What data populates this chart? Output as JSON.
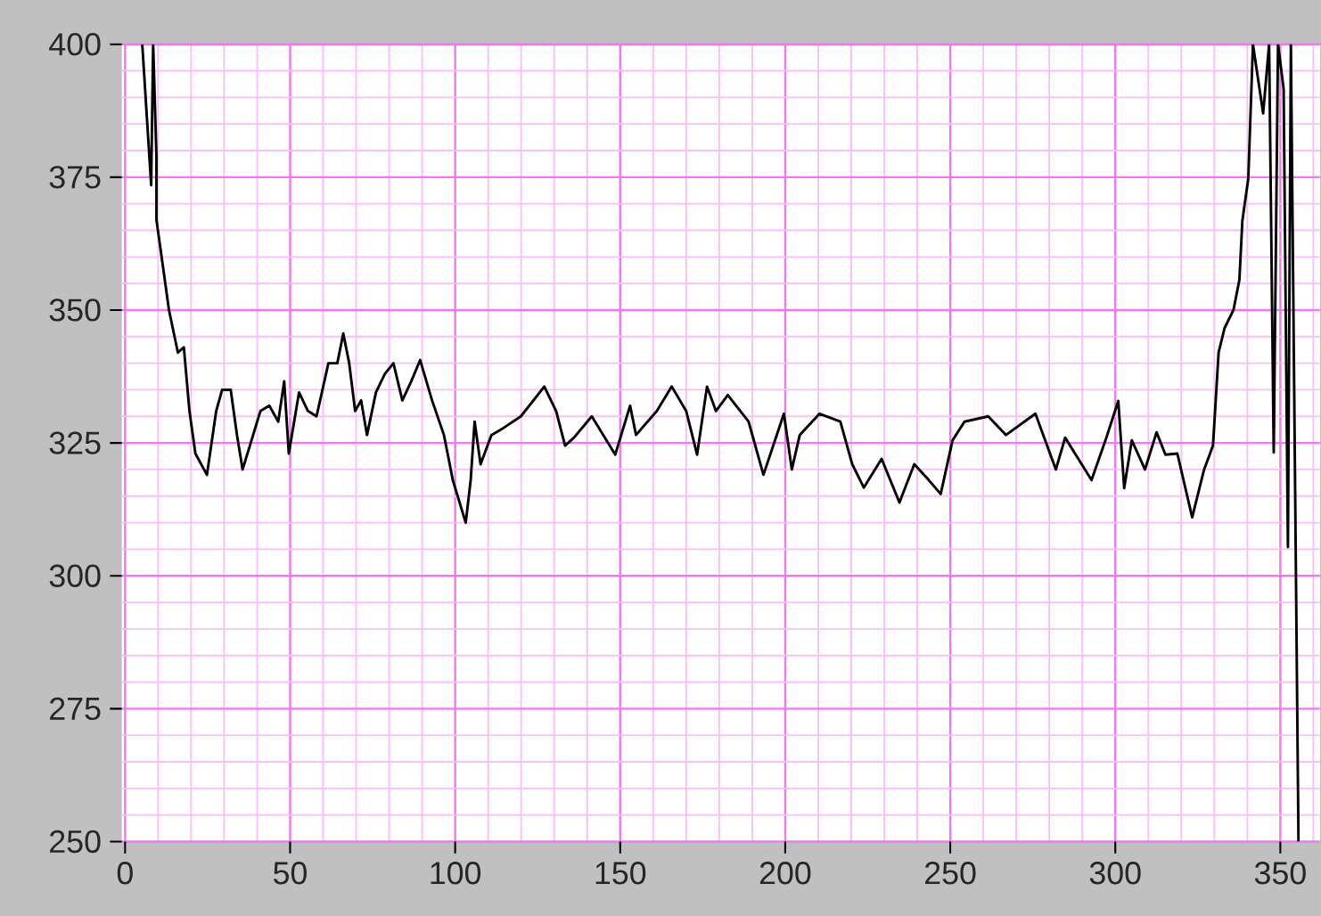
{
  "chart_data": {
    "type": "line",
    "x": [
      5.2,
      7.9,
      8.5,
      9.5,
      9.5,
      13.3,
      16,
      17.8,
      19.5,
      21.3,
      24.8,
      27.6,
      29.4,
      32,
      33.9,
      35.6,
      38.3,
      41,
      43.7,
      46.4,
      48.2,
      49.6,
      52.7,
      55.4,
      58,
      61.6,
      64.3,
      66.1,
      67.9,
      69.7,
      71.5,
      73.3,
      76,
      78.7,
      81.3,
      84,
      86.7,
      89.4,
      93,
      96.6,
      99.3,
      103.2,
      104.7,
      105.9,
      107.7,
      111,
      114.6,
      119.9,
      127,
      130.6,
      133.3,
      136,
      141.4,
      148.5,
      153,
      154.8,
      161.1,
      165.6,
      170,
      173.3,
      176.3,
      179,
      182.6,
      188.9,
      193.4,
      199.6,
      202,
      204.4,
      210.4,
      216.7,
      220.3,
      223.8,
      229.2,
      234.6,
      239.1,
      243.5,
      247.1,
      250.7,
      254.3,
      261.5,
      266.9,
      275.8,
      282,
      284.8,
      292.8,
      297.3,
      300.9,
      302.7,
      305,
      309,
      312.5,
      315.2,
      318.8,
      323.3,
      326.9,
      329.6,
      331.3,
      333.1,
      335.8,
      337.6,
      338.5,
      340.3,
      341.7,
      344.8,
      346.6,
      348,
      349.3,
      351,
      352.3,
      353.2,
      355.5
    ],
    "values": [
      400,
      373.5,
      400,
      379,
      367,
      350,
      342,
      343,
      331,
      323,
      319,
      331,
      335,
      335,
      326.5,
      320,
      325.5,
      331,
      332,
      329,
      336.6,
      323,
      334.5,
      331,
      330,
      340,
      340,
      345.6,
      340,
      331,
      333,
      326.5,
      334.5,
      338,
      340,
      333,
      336.6,
      340.6,
      333,
      326.5,
      318,
      310,
      318,
      329,
      321,
      326.5,
      327.8,
      330,
      335.6,
      331,
      324.5,
      326,
      330,
      322.8,
      332,
      326.5,
      331,
      335.6,
      331,
      322.8,
      335.6,
      331,
      334,
      329,
      319,
      330.5,
      320,
      326.5,
      330.5,
      329,
      321,
      316.6,
      322,
      313.8,
      321,
      318,
      315.4,
      325.5,
      329,
      330,
      326.5,
      330.5,
      320,
      326,
      318,
      326,
      332.9,
      316.5,
      325.5,
      320,
      327,
      322.8,
      323,
      311,
      320,
      324.5,
      342,
      346.6,
      350,
      355.7,
      366.8,
      374.8,
      400,
      387,
      400,
      323.2,
      400,
      391.6,
      305.4,
      400,
      250
    ],
    "color": "#000000",
    "xlim": [
      -1,
      362
    ],
    "ylim": [
      250,
      400
    ],
    "xticks": [
      0,
      {
        "value": 10,
        "label": null
      },
      {
        "value": 20,
        "label": null
      },
      {
        "value": 30,
        "label": null
      },
      {
        "value": 40,
        "label": null
      },
      50,
      {
        "value": 60,
        "label": null
      },
      {
        "value": 70,
        "label": null
      },
      {
        "value": 80,
        "label": null
      },
      {
        "value": 90,
        "label": null
      },
      100,
      {
        "value": 110,
        "label": null
      },
      {
        "value": 120,
        "label": null
      },
      {
        "value": 130,
        "label": null
      },
      {
        "value": 140,
        "label": null
      },
      150,
      {
        "value": 160,
        "label": null
      },
      {
        "value": 170,
        "label": null
      },
      {
        "value": 180,
        "label": null
      },
      {
        "value": 190,
        "label": null
      },
      200,
      {
        "value": 210,
        "label": null
      },
      {
        "value": 220,
        "label": null
      },
      {
        "value": 230,
        "label": null
      },
      {
        "value": 240,
        "label": null
      },
      250,
      {
        "value": 260,
        "label": null
      },
      {
        "value": 270,
        "label": null
      },
      {
        "value": 280,
        "label": null
      },
      {
        "value": 290,
        "label": null
      },
      300,
      {
        "value": 310,
        "label": null
      },
      {
        "value": 320,
        "label": null
      },
      {
        "value": 330,
        "label": null
      },
      {
        "value": 340,
        "label": null
      },
      350,
      {
        "value": 360,
        "label": null
      }
    ],
    "yticks": [
      250,
      {
        "value": 255,
        "label": null
      },
      {
        "value": 260,
        "label": null
      },
      {
        "value": 265,
        "label": null
      },
      {
        "value": 270,
        "label": null
      },
      275,
      {
        "value": 280,
        "label": null
      },
      {
        "value": 285,
        "label": null
      },
      {
        "value": 290,
        "label": null
      },
      {
        "value": 295,
        "label": null
      },
      300,
      {
        "value": 305,
        "label": null
      },
      {
        "value": 310,
        "label": null
      },
      {
        "value": 315,
        "label": null
      },
      {
        "value": 320,
        "label": null
      },
      325,
      {
        "value": 330,
        "label": null
      },
      {
        "value": 335,
        "label": null
      },
      {
        "value": 340,
        "label": null
      },
      {
        "value": 345,
        "label": null
      },
      350,
      {
        "value": 355,
        "label": null
      },
      {
        "value": 360,
        "label": null
      },
      {
        "value": 365,
        "label": null
      },
      {
        "value": 370,
        "label": null
      },
      375,
      {
        "value": 380,
        "label": null
      },
      {
        "value": 385,
        "label": null
      },
      {
        "value": 390,
        "label": null
      },
      {
        "value": 395,
        "label": null
      },
      400
    ],
    "grid": true
  }
}
